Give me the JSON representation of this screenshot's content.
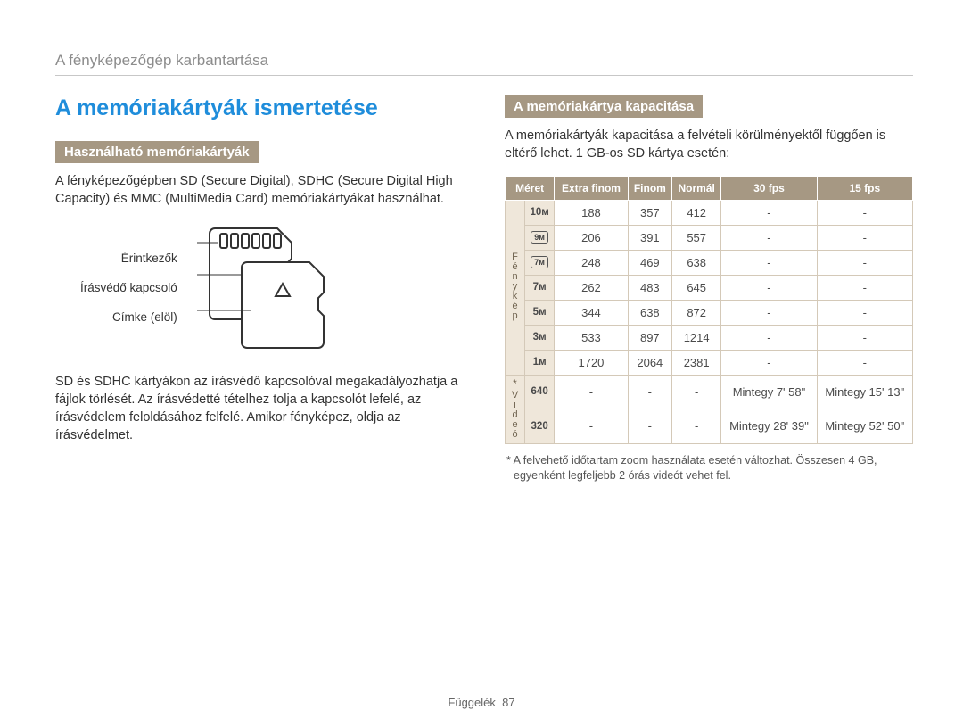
{
  "header": "A fényképezőgép karbantartása",
  "title": "A memóriakártyák ismertetése",
  "left": {
    "subhead": "Használható memóriakártyák",
    "p1": "A fényképezőgépben SD (Secure Digital), SDHC (Secure Digital High Capacity) és MMC (MultiMedia Card) memóriakártyákat használhat.",
    "labels": {
      "contacts": "Érintkezők",
      "lock": "Írásvédő kapcsoló",
      "label": "Címke (elöl)"
    },
    "p2": "SD és SDHC kártyákon az írásvédő kapcsolóval megakadályozhatja a fájlok törlését. Az írásvédetté tételhez tolja a kapcsolót lefelé, az írásvédelem feloldásához felfelé. Amikor fényképez, oldja az írásvédelmet."
  },
  "right": {
    "subhead": "A memóriakártya kapacitása",
    "p1": "A memóriakártyák kapacitása a felvételi körülményektől függően is eltérő lehet. 1 GB-os SD kártya esetén:",
    "table": {
      "columns": [
        "Méret",
        "Extra finom",
        "Finom",
        "Normál",
        "30 fps",
        "15 fps"
      ],
      "group_photo": "Fénykép",
      "group_video": "Videó",
      "group_video_mark": "*",
      "photo_rows": [
        {
          "size": "10ᴍ",
          "ef": "188",
          "f": "357",
          "n": "412",
          "fps30": "-",
          "fps15": "-"
        },
        {
          "size": "9ᴍ",
          "boxed": true,
          "ef": "206",
          "f": "391",
          "n": "557",
          "fps30": "-",
          "fps15": "-"
        },
        {
          "size": "7ᴍ",
          "boxed": true,
          "ef": "248",
          "f": "469",
          "n": "638",
          "fps30": "-",
          "fps15": "-"
        },
        {
          "size": "7ᴍ",
          "ef": "262",
          "f": "483",
          "n": "645",
          "fps30": "-",
          "fps15": "-"
        },
        {
          "size": "5ᴍ",
          "ef": "344",
          "f": "638",
          "n": "872",
          "fps30": "-",
          "fps15": "-"
        },
        {
          "size": "3ᴍ",
          "ef": "533",
          "f": "897",
          "n": "1214",
          "fps30": "-",
          "fps15": "-"
        },
        {
          "size": "1ᴍ",
          "ef": "1720",
          "f": "2064",
          "n": "2381",
          "fps30": "-",
          "fps15": "-"
        }
      ],
      "video_rows": [
        {
          "size": "640",
          "ef": "-",
          "f": "-",
          "n": "-",
          "fps30": "Mintegy 7' 58\"",
          "fps15": "Mintegy 15' 13\""
        },
        {
          "size": "320",
          "ef": "-",
          "f": "-",
          "n": "-",
          "fps30": "Mintegy 28' 39\"",
          "fps15": "Mintegy 52' 50\""
        }
      ]
    },
    "footnote": "* A felvehető időtartam zoom használata esetén változhat. Összesen 4 GB, egyenként legfeljebb 2 órás videót vehet fel."
  },
  "footer": {
    "label": "Függelék",
    "page": "87"
  },
  "colors": {
    "accent_blue": "#1f8ddb",
    "tan": "#a69883",
    "tan_light": "#efe7da",
    "grey": "#8c8c8c"
  }
}
